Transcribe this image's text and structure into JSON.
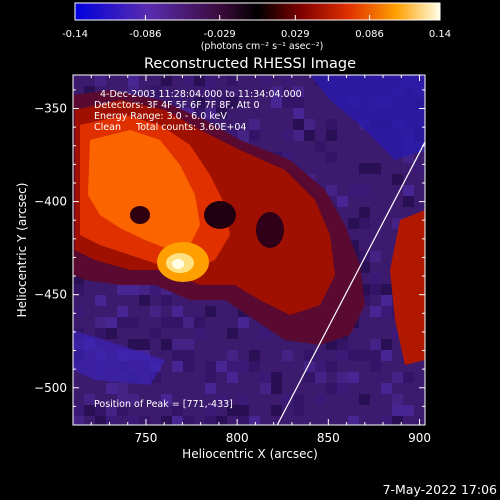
{
  "chart_data": {
    "type": "heatmap",
    "title": "Reconstructed RHESSI Image",
    "colorbar": {
      "min": -0.14,
      "max": 0.14,
      "tick_labels": [
        "-0.14",
        "-0.086",
        "-0.029",
        "0.029",
        "0.086",
        "0.14"
      ],
      "tick_values": [
        -0.14,
        -0.086,
        -0.029,
        0.029,
        0.086,
        0.14
      ],
      "units_label": "(photons cm⁻² s⁻¹ asec⁻²)",
      "colors": [
        "#0000cc",
        "#5a2cb0",
        "#3a0a3a",
        "#000000",
        "#7a0000",
        "#e03000",
        "#ffa000",
        "#ffffe0"
      ]
    },
    "xlabel": "Heliocentric X (arcsec)",
    "ylabel": "Heliocentric Y (arcsec)",
    "xlim": [
      710,
      903
    ],
    "ylim": [
      -520,
      -332
    ],
    "x_ticks": [
      750,
      800,
      850,
      900
    ],
    "y_ticks": [
      -350,
      -400,
      -450,
      -500
    ],
    "x_tick_labels": [
      "750",
      "800",
      "850",
      "900"
    ],
    "y_tick_labels": [
      "−350",
      "−400",
      "−450",
      "−500"
    ],
    "annotations": [
      "4-Dec-2003 11:28:04.000 to 11:34:04.000",
      "Detectors: 3F 4F 5F 6F 7F 8F, Att 0",
      "Energy Range: 3.0 - 6.0 keV",
      "Clean     Total counts: 3.60E+04"
    ],
    "peak_label": "Position of Peak = [771,-433]",
    "peak": {
      "x": 771,
      "y": -433
    },
    "grid": false,
    "limb_line": [
      {
        "x": 822,
        "y": -520
      },
      {
        "x": 903,
        "y": -368
      }
    ]
  },
  "footer": {
    "date": "7-May-2022 17:06"
  }
}
